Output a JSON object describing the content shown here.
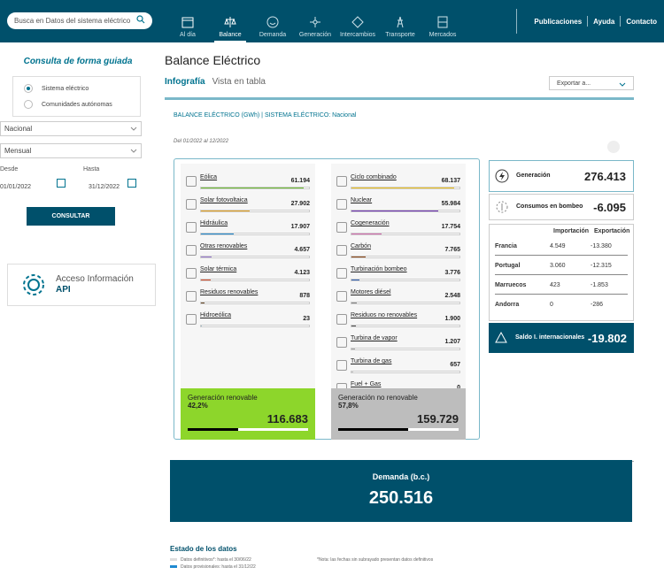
{
  "search": {
    "placeholder": "Busca en Datos del sistema eléctrico"
  },
  "nav": [
    {
      "label": "Al día"
    },
    {
      "label": "Balance"
    },
    {
      "label": "Demanda"
    },
    {
      "label": "Generación"
    },
    {
      "label": "Intercambios"
    },
    {
      "label": "Transporte"
    },
    {
      "label": "Mercados"
    }
  ],
  "top_links": {
    "pub": "Publicaciones",
    "help": "Ayuda",
    "contact": "Contacto"
  },
  "sidebar": {
    "title": "Consulta de forma guiada",
    "radio1": "Sistema eléctrico",
    "radio2": "Comunidades autónomas",
    "scope": "Nacional",
    "period": "Mensual",
    "from_label": "Desde",
    "to_label": "Hasta",
    "from": "01/01/2022",
    "to": "31/12/2022",
    "consult": "CONSULTAR",
    "api_line1": "Acceso Información",
    "api_line2": "API"
  },
  "main": {
    "title": "Balance Eléctrico",
    "tab1": "Infografía",
    "tab2": "Vista en tabla",
    "export": "Exportar a...",
    "panel_title": "BALANCE ELÉCTRICO (GWh) | SISTEMA ELÉCTRICO: Nacional",
    "panel_sub": "Del 01/2022 al 12/2022"
  },
  "renewables": [
    {
      "name": "Eólica",
      "value": "61.194",
      "share": 0.95,
      "color": "#6cbc2f"
    },
    {
      "name": "Solar fotovoltaica",
      "value": "27.902",
      "share": 0.45,
      "color": "#e8a31c"
    },
    {
      "name": "Hidráulica",
      "value": "17.907",
      "share": 0.3,
      "color": "#1f8ad1"
    },
    {
      "name": "Otras renovables",
      "value": "4.657",
      "share": 0.1,
      "color": "#9a7bd1"
    },
    {
      "name": "Solar térmica",
      "value": "4.123",
      "share": 0.09,
      "color": "#d64c2a"
    },
    {
      "name": "Residuos renovables",
      "value": "878",
      "share": 0.03,
      "color": "#6b4c2a"
    },
    {
      "name": "Hidroeólica",
      "value": "23",
      "share": 0.01,
      "color": "#a0c0d0"
    }
  ],
  "nonrenewables": [
    {
      "name": "Ciclo combinado",
      "value": "68.137",
      "share": 0.95,
      "color": "#f2c41b"
    },
    {
      "name": "Nuclear",
      "value": "55.984",
      "share": 0.8,
      "color": "#6b2fb3"
    },
    {
      "name": "Cogeneración",
      "value": "17.754",
      "share": 0.28,
      "color": "#d66bb0"
    },
    {
      "name": "Carbón",
      "value": "7.765",
      "share": 0.13,
      "color": "#8b4513"
    },
    {
      "name": "Turbinación bombeo",
      "value": "3.776",
      "share": 0.07,
      "color": "#2f5fb3"
    },
    {
      "name": "Motores diésel",
      "value": "2.548",
      "share": 0.05,
      "color": "#888"
    },
    {
      "name": "Residuos no renovables",
      "value": "1.900",
      "share": 0.04,
      "color": "#555"
    },
    {
      "name": "Turbina de vapor",
      "value": "1.207",
      "share": 0.03,
      "color": "#aaa"
    },
    {
      "name": "Turbina de gas",
      "value": "657",
      "share": 0.02,
      "color": "#ccc"
    },
    {
      "name": "Fuel + Gas",
      "value": "0",
      "share": 0.0,
      "color": "#ddd"
    }
  ],
  "sum_ren": {
    "title": "Generación renovable",
    "pct": "42,2%",
    "value": "116.683",
    "color": "#8dd62b"
  },
  "sum_nren": {
    "title": "Generación no renovable",
    "pct": "57,8%",
    "value": "159.729",
    "color": "#bdbdbd"
  },
  "gen": {
    "label": "Generación",
    "value": "276.413"
  },
  "cons": {
    "label": "Consumos en bombeo",
    "value": "-6.095"
  },
  "exchanges": {
    "h_imp": "Importación",
    "h_exp": "Exportación",
    "rows": [
      {
        "country": "Francia",
        "imp": "4.549",
        "exp": "-13.380"
      },
      {
        "country": "Portugal",
        "imp": "3.060",
        "exp": "-12.315"
      },
      {
        "country": "Marruecos",
        "imp": "423",
        "exp": "-1.853"
      },
      {
        "country": "Andorra",
        "imp": "0",
        "exp": "-286"
      }
    ]
  },
  "saldo": {
    "label": "Saldo I. internacionales",
    "value": "-19.802"
  },
  "demand": {
    "label": "Demanda (b.c.)",
    "value": "250.516"
  },
  "estado": {
    "title": "Estado de los datos",
    "def": "Datos definitivos*: hasta el 30/06/22",
    "prov": "Datos provisionales: hasta el 31/12/22",
    "note": "*Nota: las fechas sin subrayado presentan datos definitivos"
  }
}
